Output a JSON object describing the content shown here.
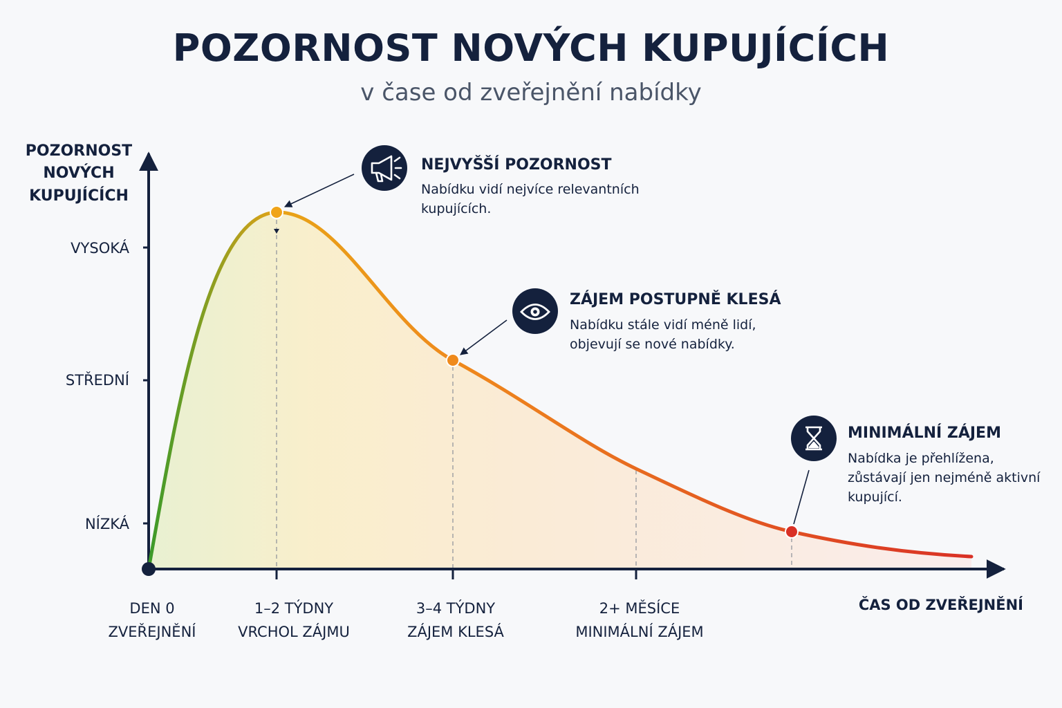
{
  "header": {
    "title": "POZORNOST NOVÝCH KUPUJÍCÍCH",
    "subtitle": "v čase od zveřejnění nabídky"
  },
  "chart_data": {
    "type": "line",
    "y_axis_title": [
      "POZORNOST",
      "NOVÝCH",
      "KUPUJÍCÍCH"
    ],
    "x_axis_title": "ČAS OD ZVEŘEJNĚNÍ",
    "y_tick_labels": [
      "VYSOKÁ",
      "STŘEDNÍ",
      "NÍZKÁ"
    ],
    "x_tick_labels": [
      [
        "DEN 0",
        "ZVEŘEJNĚNÍ"
      ],
      [
        "1–2 TÝDNY",
        "VRCHOL ZÁJMU"
      ],
      [
        "3–4 TÝDNY",
        "ZÁJEM KLESÁ"
      ],
      [
        "2+ MĚSÍCE",
        "MINIMÁLNÍ ZÁJEM"
      ]
    ],
    "curve_colors": [
      "#3a9a2a",
      "#e8a317",
      "#ef8a1c",
      "#d93025"
    ],
    "annotations": [
      {
        "icon": "megaphone-icon",
        "title": "NEJVYŠŠÍ POZORNOST",
        "lines": [
          "Nabídku vidí nejvíce relevantních",
          "kupujících."
        ]
      },
      {
        "icon": "eye-icon",
        "title": "ZÁJEM POSTUPNĚ KLESÁ",
        "lines": [
          "Nabídku stále vidí méně lidí,",
          "objevují se nové nabídky."
        ]
      },
      {
        "icon": "hourglass-icon",
        "title": "MINIMÁLNÍ ZÁJEM",
        "lines": [
          "Nabídka je přehlížena,",
          "zůstávají jen nejméně aktivní",
          "kupující."
        ]
      }
    ]
  }
}
